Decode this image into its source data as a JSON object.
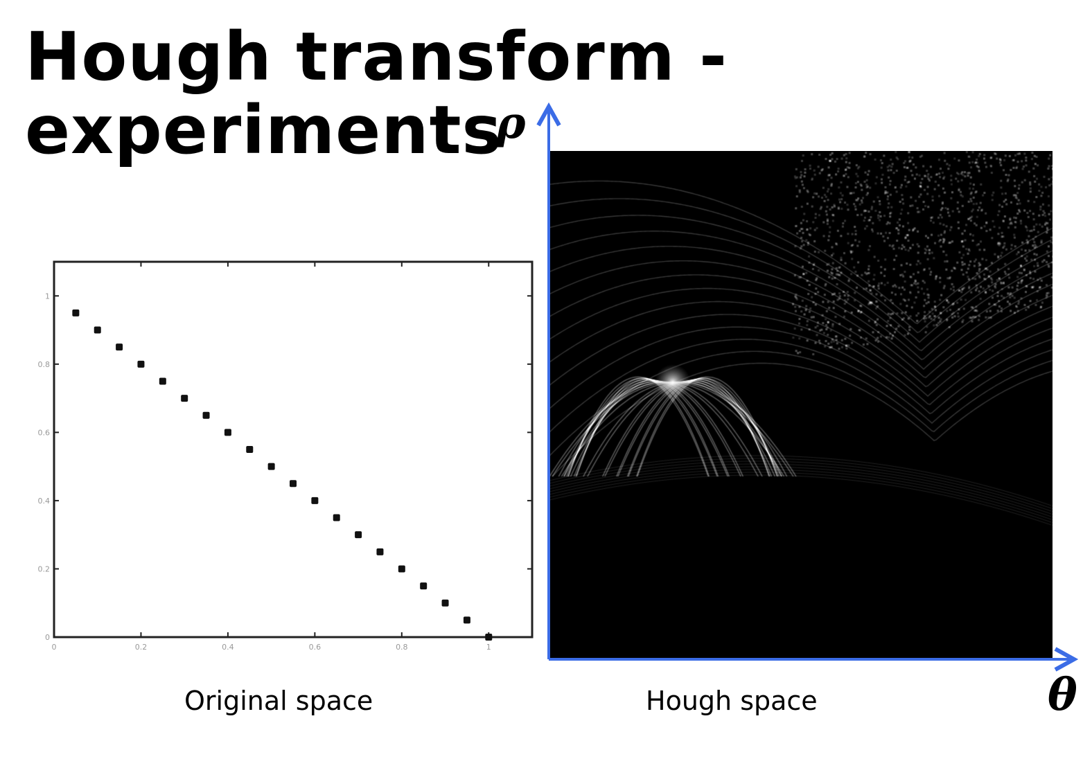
{
  "slide": {
    "title_line1": "Hough transform -",
    "title_line2": "experiments"
  },
  "captions": {
    "left": "Original space",
    "right": "Hough space"
  },
  "hough_axes": {
    "y_symbol": "ρ",
    "x_symbol": "θ",
    "axis_color": "#3b6ce6"
  },
  "chart_data": {
    "type": "scatter",
    "title": "",
    "xlabel": "",
    "ylabel": "",
    "xlim": [
      0,
      1.1
    ],
    "ylim": [
      0,
      1.1
    ],
    "xticks": [
      "0",
      "0.2",
      "0.4",
      "0.6",
      "0.8",
      "1"
    ],
    "yticks": [
      "0",
      "0.2",
      "0.4",
      "0.6",
      "0.8",
      "1"
    ],
    "x": [
      0.05,
      0.1,
      0.15,
      0.2,
      0.25,
      0.3,
      0.35,
      0.4,
      0.45,
      0.5,
      0.55,
      0.6,
      0.65,
      0.7,
      0.75,
      0.8,
      0.85,
      0.9,
      0.95,
      1.0
    ],
    "y": [
      0.95,
      0.9,
      0.85,
      0.8,
      0.75,
      0.7,
      0.65,
      0.6,
      0.55,
      0.5,
      0.45,
      0.4,
      0.35,
      0.3,
      0.25,
      0.2,
      0.15,
      0.1,
      0.05,
      0.0
    ],
    "grid": false
  }
}
